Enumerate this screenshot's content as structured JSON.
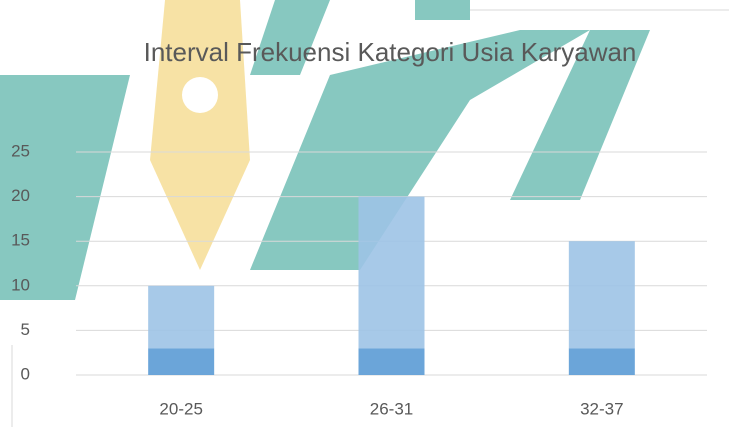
{
  "chart_data": {
    "type": "stacked_bar",
    "title": "Interval Frekuensi Kategori Usia Karyawan",
    "categories": [
      "20-25",
      "26-31",
      "32-37"
    ],
    "series": [
      {
        "color": "#5b9bd5",
        "values": [
          3,
          3,
          3
        ]
      },
      {
        "color": "#9dc3e6",
        "values": [
          7,
          17,
          12
        ]
      }
    ],
    "ylim": [
      0,
      25
    ],
    "yticks": [
      0,
      5,
      10,
      15,
      20,
      25
    ],
    "grid": true
  }
}
